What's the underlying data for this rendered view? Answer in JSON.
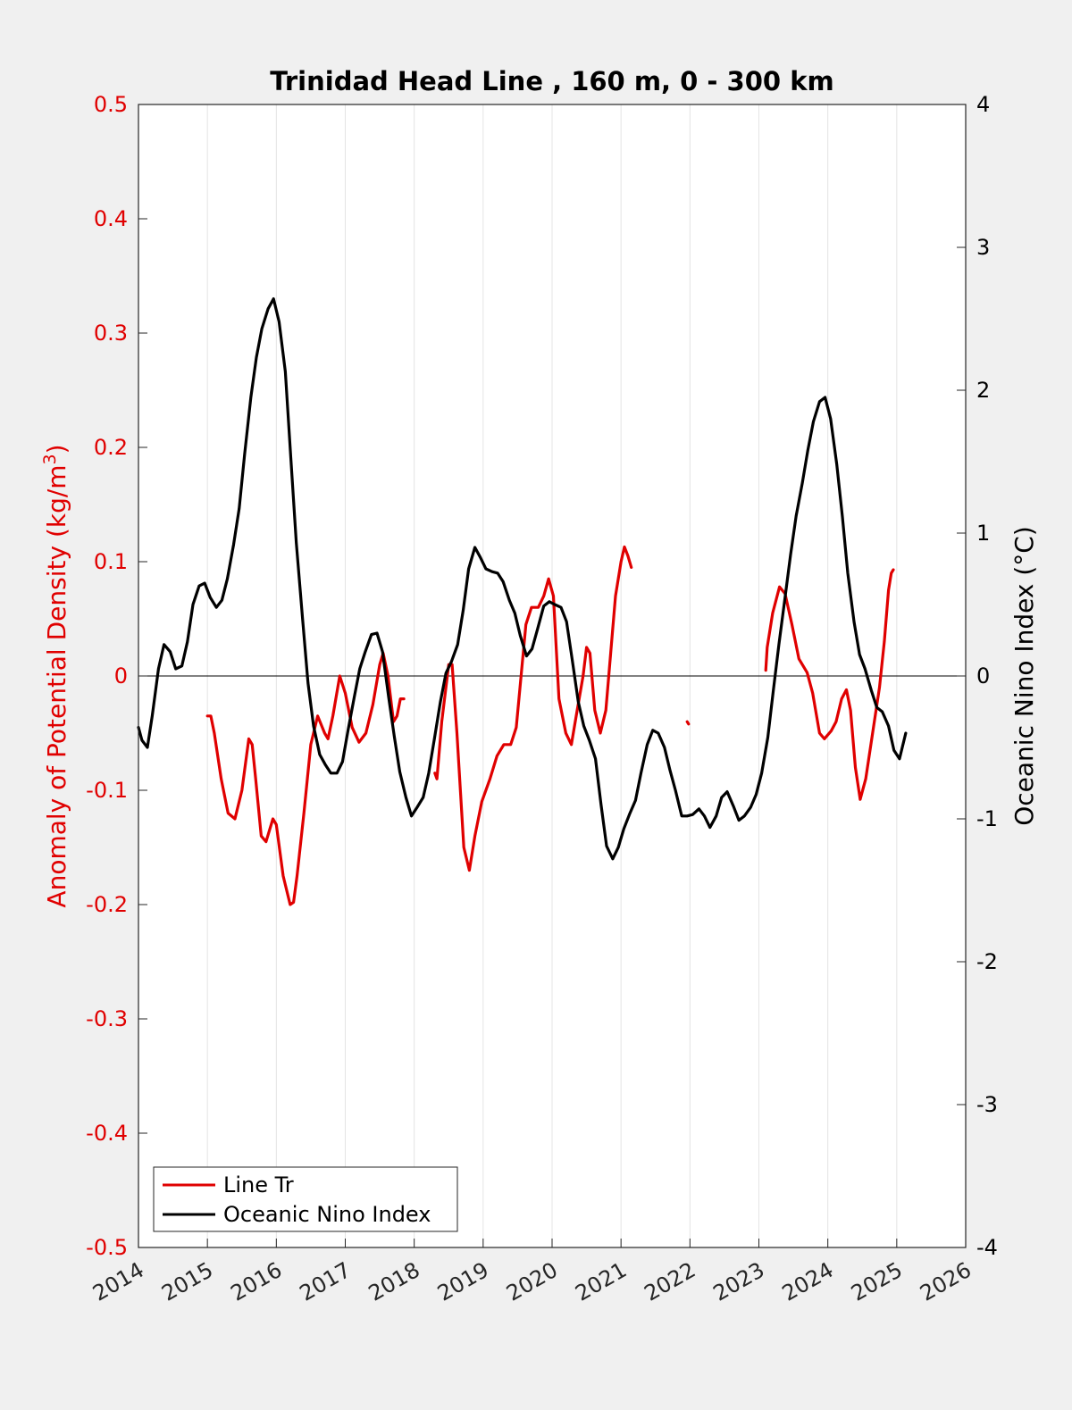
{
  "chart_data": {
    "type": "line",
    "title": "Trinidad Head Line , 160 m, 0 - 300 km",
    "xlabel": "",
    "xlim": [
      2014,
      2026
    ],
    "x_ticks": [
      "2014",
      "2015",
      "2016",
      "2017",
      "2018",
      "2019",
      "2020",
      "2021",
      "2022",
      "2023",
      "2024",
      "2025",
      "2026"
    ],
    "y_left": {
      "label": "Anomaly of Potential Density (kg/m",
      "label_sup": "3",
      "label_close": ")",
      "ylim": [
        -0.5,
        0.5
      ],
      "ticks": [
        "0.5",
        "0.4",
        "0.3",
        "0.2",
        "0.1",
        "0",
        "-0.1",
        "-0.2",
        "-0.3",
        "-0.4",
        "-0.5"
      ],
      "color": "#e00000"
    },
    "y_right": {
      "label": "Oceanic Nino Index (°C)",
      "ylim": [
        -4,
        4
      ],
      "ticks": [
        "4",
        "3",
        "2",
        "1",
        "0",
        "-1",
        "-2",
        "-3",
        "-4"
      ],
      "color": "#000000"
    },
    "grid": "vertical",
    "legend_position": "bottom-left",
    "series": [
      {
        "name": "Line Tr",
        "axis": "left",
        "color": "#e00000",
        "segments": [
          [
            [
              2015.0,
              -0.035
            ],
            [
              2015.05,
              -0.035
            ],
            [
              2015.1,
              -0.05
            ],
            [
              2015.2,
              -0.09
            ],
            [
              2015.3,
              -0.12
            ],
            [
              2015.4,
              -0.125
            ],
            [
              2015.5,
              -0.1
            ],
            [
              2015.6,
              -0.055
            ],
            [
              2015.65,
              -0.06
            ],
            [
              2015.7,
              -0.09
            ],
            [
              2015.78,
              -0.14
            ],
            [
              2015.85,
              -0.145
            ],
            [
              2015.95,
              -0.125
            ],
            [
              2016.0,
              -0.13
            ],
            [
              2016.1,
              -0.175
            ],
            [
              2016.2,
              -0.2
            ],
            [
              2016.25,
              -0.198
            ],
            [
              2016.3,
              -0.175
            ],
            [
              2016.4,
              -0.12
            ],
            [
              2016.5,
              -0.06
            ],
            [
              2016.6,
              -0.035
            ],
            [
              2016.7,
              -0.05
            ],
            [
              2016.75,
              -0.055
            ],
            [
              2016.82,
              -0.035
            ],
            [
              2016.92,
              0.0
            ],
            [
              2017.0,
              -0.015
            ],
            [
              2017.1,
              -0.045
            ],
            [
              2017.2,
              -0.058
            ],
            [
              2017.3,
              -0.05
            ],
            [
              2017.4,
              -0.025
            ],
            [
              2017.5,
              0.01
            ],
            [
              2017.55,
              0.02
            ],
            [
              2017.62,
              0.0
            ],
            [
              2017.7,
              -0.04
            ],
            [
              2017.75,
              -0.035
            ],
            [
              2017.8,
              -0.02
            ],
            [
              2017.85,
              -0.02
            ]
          ],
          [
            [
              2018.3,
              -0.085
            ],
            [
              2018.33,
              -0.09
            ],
            [
              2018.4,
              -0.04
            ],
            [
              2018.5,
              0.01
            ],
            [
              2018.55,
              0.01
            ],
            [
              2018.62,
              -0.05
            ],
            [
              2018.72,
              -0.15
            ],
            [
              2018.8,
              -0.17
            ],
            [
              2018.88,
              -0.14
            ],
            [
              2018.98,
              -0.11
            ],
            [
              2019.1,
              -0.09
            ],
            [
              2019.2,
              -0.07
            ],
            [
              2019.3,
              -0.06
            ],
            [
              2019.4,
              -0.06
            ],
            [
              2019.48,
              -0.045
            ],
            [
              2019.55,
              0.0
            ],
            [
              2019.62,
              0.045
            ],
            [
              2019.7,
              0.06
            ],
            [
              2019.8,
              0.06
            ],
            [
              2019.88,
              0.07
            ],
            [
              2019.95,
              0.085
            ],
            [
              2020.02,
              0.07
            ],
            [
              2020.1,
              -0.02
            ],
            [
              2020.2,
              -0.05
            ],
            [
              2020.28,
              -0.06
            ],
            [
              2020.35,
              -0.035
            ],
            [
              2020.45,
              0.0
            ],
            [
              2020.5,
              0.025
            ],
            [
              2020.55,
              0.02
            ],
            [
              2020.62,
              -0.03
            ],
            [
              2020.7,
              -0.05
            ],
            [
              2020.78,
              -0.03
            ],
            [
              2020.85,
              0.02
            ],
            [
              2020.92,
              0.07
            ],
            [
              2021.0,
              0.1
            ],
            [
              2021.05,
              0.113
            ],
            [
              2021.1,
              0.105
            ],
            [
              2021.15,
              0.095
            ]
          ],
          [
            [
              2021.96,
              -0.04
            ],
            [
              2021.98,
              -0.042
            ]
          ],
          [
            [
              2023.1,
              0.005
            ],
            [
              2023.12,
              0.025
            ],
            [
              2023.2,
              0.055
            ],
            [
              2023.3,
              0.078
            ],
            [
              2023.38,
              0.072
            ],
            [
              2023.48,
              0.045
            ],
            [
              2023.58,
              0.015
            ],
            [
              2023.7,
              0.003
            ],
            [
              2023.78,
              -0.015
            ],
            [
              2023.88,
              -0.05
            ],
            [
              2023.95,
              -0.055
            ],
            [
              2024.05,
              -0.048
            ],
            [
              2024.12,
              -0.04
            ],
            [
              2024.2,
              -0.02
            ],
            [
              2024.27,
              -0.012
            ],
            [
              2024.33,
              -0.03
            ],
            [
              2024.4,
              -0.08
            ],
            [
              2024.47,
              -0.108
            ],
            [
              2024.55,
              -0.09
            ],
            [
              2024.65,
              -0.05
            ],
            [
              2024.75,
              -0.01
            ],
            [
              2024.82,
              0.03
            ],
            [
              2024.88,
              0.075
            ],
            [
              2024.92,
              0.09
            ],
            [
              2024.95,
              0.093
            ]
          ]
        ]
      },
      {
        "name": "Oceanic Nino Index",
        "axis": "right",
        "color": "#000000",
        "segments": [
          [
            [
              2014.0,
              -0.36
            ],
            [
              2014.05,
              -0.45
            ],
            [
              2014.13,
              -0.5
            ],
            [
              2014.2,
              -0.28
            ],
            [
              2014.29,
              0.05
            ],
            [
              2014.37,
              0.22
            ],
            [
              2014.46,
              0.17
            ],
            [
              2014.54,
              0.05
            ],
            [
              2014.63,
              0.07
            ],
            [
              2014.71,
              0.24
            ],
            [
              2014.79,
              0.5
            ],
            [
              2014.88,
              0.63
            ],
            [
              2014.96,
              0.65
            ],
            [
              2015.04,
              0.55
            ],
            [
              2015.13,
              0.48
            ],
            [
              2015.21,
              0.53
            ],
            [
              2015.29,
              0.68
            ],
            [
              2015.38,
              0.92
            ],
            [
              2015.46,
              1.17
            ],
            [
              2015.54,
              1.55
            ],
            [
              2015.63,
              1.95
            ],
            [
              2015.71,
              2.23
            ],
            [
              2015.79,
              2.43
            ],
            [
              2015.88,
              2.57
            ],
            [
              2015.96,
              2.64
            ],
            [
              2016.04,
              2.48
            ],
            [
              2016.13,
              2.13
            ],
            [
              2016.21,
              1.53
            ],
            [
              2016.29,
              0.93
            ],
            [
              2016.38,
              0.4
            ],
            [
              2016.46,
              -0.05
            ],
            [
              2016.54,
              -0.35
            ],
            [
              2016.63,
              -0.55
            ],
            [
              2016.71,
              -0.62
            ],
            [
              2016.79,
              -0.68
            ],
            [
              2016.88,
              -0.68
            ],
            [
              2016.96,
              -0.6
            ],
            [
              2017.04,
              -0.38
            ],
            [
              2017.13,
              -0.15
            ],
            [
              2017.21,
              0.05
            ],
            [
              2017.29,
              0.17
            ],
            [
              2017.38,
              0.29
            ],
            [
              2017.46,
              0.3
            ],
            [
              2017.54,
              0.17
            ],
            [
              2017.63,
              -0.15
            ],
            [
              2017.71,
              -0.42
            ],
            [
              2017.79,
              -0.67
            ],
            [
              2017.88,
              -0.85
            ],
            [
              2017.96,
              -0.98
            ],
            [
              2018.04,
              -0.92
            ],
            [
              2018.13,
              -0.85
            ],
            [
              2018.21,
              -0.68
            ],
            [
              2018.29,
              -0.45
            ],
            [
              2018.38,
              -0.18
            ],
            [
              2018.46,
              0.02
            ],
            [
              2018.54,
              0.1
            ],
            [
              2018.63,
              0.22
            ],
            [
              2018.71,
              0.46
            ],
            [
              2018.79,
              0.75
            ],
            [
              2018.88,
              0.9
            ],
            [
              2018.96,
              0.83
            ],
            [
              2019.04,
              0.75
            ],
            [
              2019.13,
              0.73
            ],
            [
              2019.21,
              0.72
            ],
            [
              2019.29,
              0.66
            ],
            [
              2019.38,
              0.53
            ],
            [
              2019.46,
              0.44
            ],
            [
              2019.54,
              0.28
            ],
            [
              2019.63,
              0.14
            ],
            [
              2019.71,
              0.19
            ],
            [
              2019.79,
              0.33
            ],
            [
              2019.88,
              0.49
            ],
            [
              2019.96,
              0.52
            ],
            [
              2020.04,
              0.5
            ],
            [
              2020.13,
              0.48
            ],
            [
              2020.21,
              0.38
            ],
            [
              2020.29,
              0.12
            ],
            [
              2020.38,
              -0.18
            ],
            [
              2020.46,
              -0.35
            ],
            [
              2020.54,
              -0.45
            ],
            [
              2020.63,
              -0.58
            ],
            [
              2020.71,
              -0.9
            ],
            [
              2020.79,
              -1.19
            ],
            [
              2020.88,
              -1.28
            ],
            [
              2020.96,
              -1.2
            ],
            [
              2021.04,
              -1.07
            ],
            [
              2021.13,
              -0.96
            ],
            [
              2021.21,
              -0.87
            ],
            [
              2021.29,
              -0.68
            ],
            [
              2021.38,
              -0.48
            ],
            [
              2021.46,
              -0.38
            ],
            [
              2021.54,
              -0.4
            ],
            [
              2021.63,
              -0.5
            ],
            [
              2021.71,
              -0.66
            ],
            [
              2021.79,
              -0.8
            ],
            [
              2021.88,
              -0.98
            ],
            [
              2021.96,
              -0.98
            ],
            [
              2022.04,
              -0.97
            ],
            [
              2022.13,
              -0.93
            ],
            [
              2022.21,
              -0.98
            ],
            [
              2022.29,
              -1.06
            ],
            [
              2022.38,
              -0.98
            ],
            [
              2022.46,
              -0.85
            ],
            [
              2022.54,
              -0.81
            ],
            [
              2022.63,
              -0.91
            ],
            [
              2022.71,
              -1.01
            ],
            [
              2022.79,
              -0.98
            ],
            [
              2022.88,
              -0.92
            ],
            [
              2022.96,
              -0.83
            ],
            [
              2023.04,
              -0.68
            ],
            [
              2023.13,
              -0.43
            ],
            [
              2023.21,
              -0.1
            ],
            [
              2023.29,
              0.22
            ],
            [
              2023.38,
              0.55
            ],
            [
              2023.46,
              0.85
            ],
            [
              2023.54,
              1.12
            ],
            [
              2023.63,
              1.35
            ],
            [
              2023.71,
              1.58
            ],
            [
              2023.79,
              1.78
            ],
            [
              2023.88,
              1.92
            ],
            [
              2023.96,
              1.95
            ],
            [
              2024.04,
              1.8
            ],
            [
              2024.13,
              1.48
            ],
            [
              2024.21,
              1.12
            ],
            [
              2024.29,
              0.72
            ],
            [
              2024.38,
              0.38
            ],
            [
              2024.46,
              0.15
            ],
            [
              2024.54,
              0.05
            ],
            [
              2024.63,
              -0.1
            ],
            [
              2024.71,
              -0.22
            ],
            [
              2024.79,
              -0.25
            ],
            [
              2024.88,
              -0.35
            ],
            [
              2024.96,
              -0.52
            ],
            [
              2025.04,
              -0.58
            ],
            [
              2025.13,
              -0.4
            ]
          ]
        ]
      }
    ]
  }
}
